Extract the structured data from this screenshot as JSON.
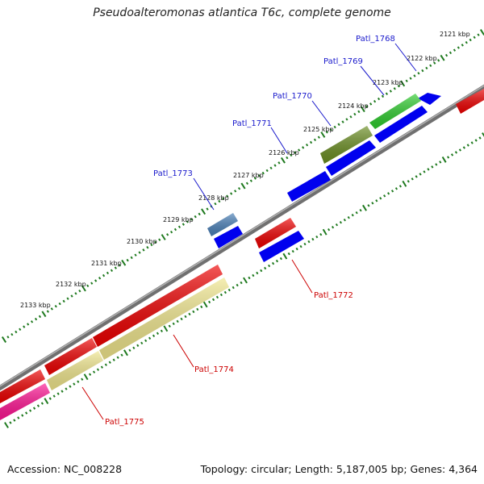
{
  "title": "Pseudoalteromonas atlantica T6c, complete genome",
  "footer": {
    "accession": "Accession: NC_008228",
    "summary": "Topology: circular; Length: 5,187,005 bp; Genes: 4,364"
  },
  "colors": {
    "backbone": "#808080",
    "tick": "#1f7a1f",
    "label_top": "#1a1acc",
    "label_bottom": "#cc0000"
  },
  "scale_labels": [
    "2121 kbp",
    "2122 kbp",
    "2123 kbp",
    "2124 kbp",
    "2125 kbp",
    "2126 kbp",
    "2127 kbp",
    "2128 kbp",
    "2129 kbp",
    "2130 kbp",
    "2131 kbp",
    "2132 kbp",
    "2133 kbp"
  ],
  "genes_top": [
    {
      "name": "Patl_1768",
      "color": "#0000ee"
    },
    {
      "name": "Patl_1769",
      "color": "#2ecc2e"
    },
    {
      "name": "Patl_1770",
      "color": "#0000ee"
    },
    {
      "name": "Patl_1771",
      "color": "#6b8e23"
    },
    {
      "name": "Patl_1773",
      "color": "#4a80b8"
    }
  ],
  "genes_bottom": [
    {
      "name": "Patl_1772",
      "color": "#ee0000"
    },
    {
      "name": "Patl_1774",
      "color": "#f0e68c"
    },
    {
      "name": "Patl_1775",
      "color": "#ff1493"
    }
  ]
}
